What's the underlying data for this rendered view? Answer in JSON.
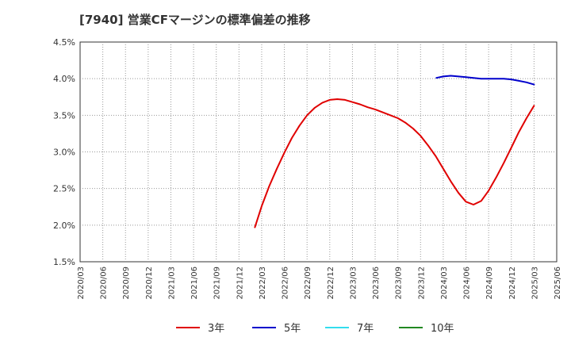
{
  "chart_data": {
    "type": "line",
    "title": "[7940]  営業CFマージンの標準偏差の推移",
    "xlabel": "",
    "ylabel": "",
    "ylim": [
      1.5,
      4.5
    ],
    "y_ticks": [
      "1.5%",
      "2.0%",
      "2.5%",
      "3.0%",
      "3.5%",
      "4.0%",
      "4.5%"
    ],
    "y_tick_values": [
      1.5,
      2.0,
      2.5,
      3.0,
      3.5,
      4.0,
      4.5
    ],
    "categories": [
      "2020/03",
      "2020/06",
      "2020/09",
      "2020/12",
      "2021/03",
      "2021/06",
      "2021/09",
      "2021/12",
      "2022/03",
      "2022/06",
      "2022/09",
      "2022/12",
      "2023/03",
      "2023/06",
      "2023/09",
      "2023/12",
      "2024/03",
      "2024/06",
      "2024/09",
      "2024/12",
      "2025/03",
      "2025/06"
    ],
    "grid": true,
    "legend_position": "bottom",
    "series": [
      {
        "name": "3年",
        "color": "#e00000",
        "points": [
          {
            "x": 7.7,
            "y": 1.97
          },
          {
            "x": 8.0,
            "y": 2.26
          },
          {
            "x": 8.33,
            "y": 2.53
          },
          {
            "x": 8.67,
            "y": 2.77
          },
          {
            "x": 9.0,
            "y": 2.99
          },
          {
            "x": 9.33,
            "y": 3.19
          },
          {
            "x": 9.67,
            "y": 3.36
          },
          {
            "x": 10.0,
            "y": 3.5
          },
          {
            "x": 10.33,
            "y": 3.6
          },
          {
            "x": 10.67,
            "y": 3.67
          },
          {
            "x": 11.0,
            "y": 3.71
          },
          {
            "x": 11.33,
            "y": 3.72
          },
          {
            "x": 11.67,
            "y": 3.71
          },
          {
            "x": 12.0,
            "y": 3.68
          },
          {
            "x": 12.33,
            "y": 3.65
          },
          {
            "x": 12.67,
            "y": 3.61
          },
          {
            "x": 13.0,
            "y": 3.58
          },
          {
            "x": 13.33,
            "y": 3.54
          },
          {
            "x": 13.67,
            "y": 3.5
          },
          {
            "x": 14.0,
            "y": 3.46
          },
          {
            "x": 14.33,
            "y": 3.4
          },
          {
            "x": 14.67,
            "y": 3.32
          },
          {
            "x": 15.0,
            "y": 3.22
          },
          {
            "x": 15.33,
            "y": 3.09
          },
          {
            "x": 15.67,
            "y": 2.94
          },
          {
            "x": 16.0,
            "y": 2.77
          },
          {
            "x": 16.33,
            "y": 2.6
          },
          {
            "x": 16.67,
            "y": 2.44
          },
          {
            "x": 17.0,
            "y": 2.32
          },
          {
            "x": 17.33,
            "y": 2.28
          },
          {
            "x": 17.67,
            "y": 2.33
          },
          {
            "x": 18.0,
            "y": 2.47
          },
          {
            "x": 18.33,
            "y": 2.65
          },
          {
            "x": 18.67,
            "y": 2.85
          },
          {
            "x": 19.0,
            "y": 3.06
          },
          {
            "x": 19.33,
            "y": 3.27
          },
          {
            "x": 19.67,
            "y": 3.46
          },
          {
            "x": 20.0,
            "y": 3.63
          }
        ]
      },
      {
        "name": "5年",
        "color": "#0000cc",
        "points": [
          {
            "x": 15.7,
            "y": 4.01
          },
          {
            "x": 16.0,
            "y": 4.03
          },
          {
            "x": 16.33,
            "y": 4.04
          },
          {
            "x": 16.67,
            "y": 4.03
          },
          {
            "x": 17.0,
            "y": 4.02
          },
          {
            "x": 17.33,
            "y": 4.01
          },
          {
            "x": 17.67,
            "y": 4.0
          },
          {
            "x": 18.0,
            "y": 4.0
          },
          {
            "x": 18.33,
            "y": 4.0
          },
          {
            "x": 18.67,
            "y": 4.0
          },
          {
            "x": 19.0,
            "y": 3.99
          },
          {
            "x": 19.33,
            "y": 3.97
          },
          {
            "x": 19.67,
            "y": 3.95
          },
          {
            "x": 20.0,
            "y": 3.92
          }
        ]
      },
      {
        "name": "7年",
        "color": "#33ddee",
        "points": []
      },
      {
        "name": "10年",
        "color": "#228822",
        "points": []
      }
    ]
  }
}
